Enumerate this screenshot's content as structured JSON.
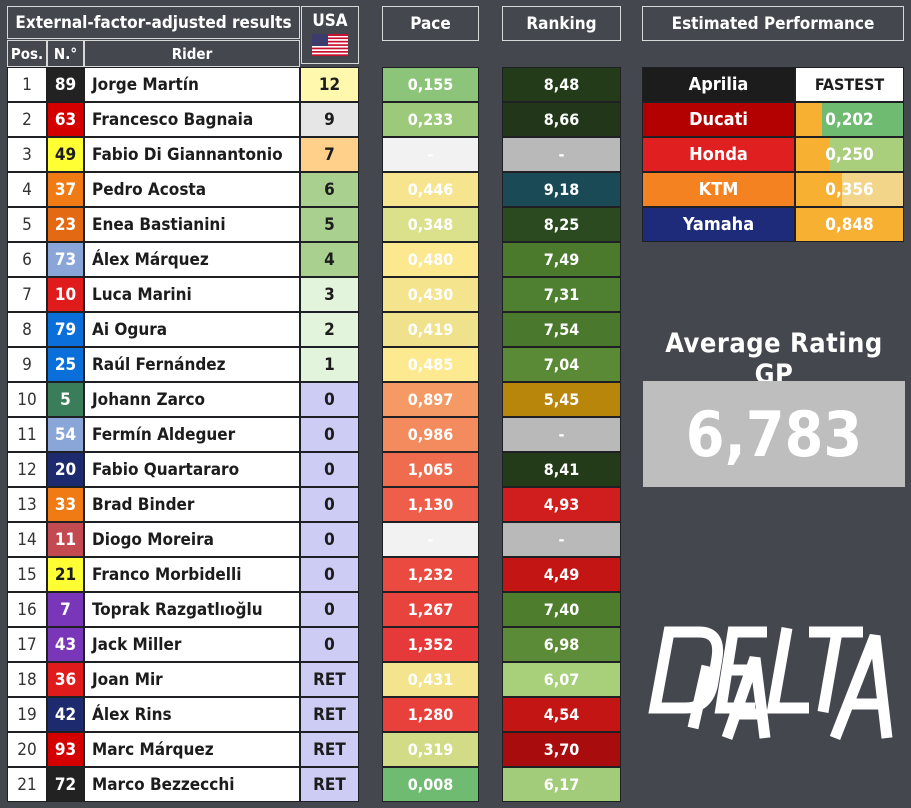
{
  "headers": {
    "results_title": "External-factor-adjusted results",
    "race": "USA",
    "pace": "Pace",
    "ranking": "Ranking",
    "performance": "Estimated Performance",
    "pos": "Pos.",
    "number": "N.°",
    "rider": "Rider"
  },
  "rows": [
    {
      "pos": "1",
      "num": "89",
      "rider": "Jorge Martín",
      "pts": "12",
      "pace": "0,155",
      "rank": "8,48",
      "num_color": "#222222",
      "num_text": "#ffffff",
      "pts_color": "#fff8ad",
      "pace_color": "#8cc47a",
      "rank_color": "#243b1a"
    },
    {
      "pos": "2",
      "num": "63",
      "rider": "Francesco Bagnaia",
      "pts": "9",
      "pace": "0,233",
      "rank": "8,66",
      "num_color": "#d40000",
      "num_text": "#ffffff",
      "pts_color": "#e6e6e6",
      "pace_color": "#9cc97a",
      "rank_color": "#223719"
    },
    {
      "pos": "3",
      "num": "49",
      "rider": "Fabio Di Giannantonio",
      "pts": "7",
      "pace": "-",
      "rank": "-",
      "num_color": "#ffff33",
      "num_text": "#1c1c1c",
      "pts_color": "#ffd08a",
      "pace_color": "#f2f2f2",
      "rank_color": "#b9b9b9"
    },
    {
      "pos": "4",
      "num": "37",
      "rider": "Pedro Acosta",
      "pts": "6",
      "pace": "0,446",
      "rank": "9,18",
      "num_color": "#f07a14",
      "num_text": "#ffffff",
      "pts_color": "#a9d08e",
      "pace_color": "#f6e48e",
      "rank_color": "#1a4a55"
    },
    {
      "pos": "5",
      "num": "23",
      "rider": "Enea Bastianini",
      "pts": "5",
      "pace": "0,348",
      "rank": "8,25",
      "num_color": "#e36a12",
      "num_text": "#ffffff",
      "pts_color": "#a9d08e",
      "pace_color": "#dbe08a",
      "rank_color": "#2b4a1f"
    },
    {
      "pos": "6",
      "num": "73",
      "rider": "Álex Márquez",
      "pts": "4",
      "pace": "0,480",
      "rank": "7,49",
      "num_color": "#8aa6d8",
      "num_text": "#ffffff",
      "pts_color": "#a9d08e",
      "pace_color": "#fce88f",
      "rank_color": "#4c7a2d"
    },
    {
      "pos": "7",
      "num": "10",
      "rider": "Luca Marini",
      "pts": "3",
      "pace": "0,430",
      "rank": "7,31",
      "num_color": "#e01b1b",
      "num_text": "#ffffff",
      "pts_color": "#e2f5dc",
      "pace_color": "#f4e48d",
      "rank_color": "#4f7f30"
    },
    {
      "pos": "8",
      "num": "79",
      "rider": "Ai Ogura",
      "pts": "2",
      "pace": "0,419",
      "rank": "7,54",
      "num_color": "#0a6fd8",
      "num_text": "#ffffff",
      "pts_color": "#e2f5dc",
      "pace_color": "#f0e28d",
      "rank_color": "#4a782c"
    },
    {
      "pos": "9",
      "num": "25",
      "rider": "Raúl Fernández",
      "pts": "1",
      "pace": "0,485",
      "rank": "7,04",
      "num_color": "#0a6fd8",
      "num_text": "#ffffff",
      "pts_color": "#e2f5dc",
      "pace_color": "#fde98f",
      "rank_color": "#5a8a35"
    },
    {
      "pos": "10",
      "num": "5",
      "rider": "Johann Zarco",
      "pts": "0",
      "pace": "0,897",
      "rank": "5,45",
      "num_color": "#3a7d5a",
      "num_text": "#ffffff",
      "pts_color": "#ccccf5",
      "pace_color": "#f59a64",
      "rank_color": "#b8860b"
    },
    {
      "pos": "11",
      "num": "54",
      "rider": "Fermín Aldeguer",
      "pts": "0",
      "pace": "0,986",
      "rank": "-",
      "num_color": "#8aa6d8",
      "num_text": "#ffffff",
      "pts_color": "#ccccf5",
      "pace_color": "#f48b5e",
      "rank_color": "#b9b9b9"
    },
    {
      "pos": "12",
      "num": "20",
      "rider": "Fabio Quartararo",
      "pts": "0",
      "pace": "1,065",
      "rank": "8,41",
      "num_color": "#1d2a6e",
      "num_text": "#ffffff",
      "pts_color": "#ccccf5",
      "pace_color": "#f06c4f",
      "rank_color": "#243b1a"
    },
    {
      "pos": "13",
      "num": "33",
      "rider": "Brad Binder",
      "pts": "0",
      "pace": "1,130",
      "rank": "4,93",
      "num_color": "#f07a14",
      "num_text": "#ffffff",
      "pts_color": "#ccccf5",
      "pace_color": "#ef5e4a",
      "rank_color": "#d01e1e"
    },
    {
      "pos": "14",
      "num": "11",
      "rider": "Diogo Moreira",
      "pts": "0",
      "pace": "-",
      "rank": "-",
      "num_color": "#c44a52",
      "num_text": "#ffffff",
      "pts_color": "#ccccf5",
      "pace_color": "#f2f2f2",
      "rank_color": "#b9b9b9"
    },
    {
      "pos": "15",
      "num": "21",
      "rider": "Franco Morbidelli",
      "pts": "0",
      "pace": "1,232",
      "rank": "4,49",
      "num_color": "#ffff33",
      "num_text": "#1c1c1c",
      "pts_color": "#ccccf5",
      "pace_color": "#ea4a40",
      "rank_color": "#c41515"
    },
    {
      "pos": "16",
      "num": "7",
      "rider": "Toprak Razgatlıoğlu",
      "pts": "0",
      "pace": "1,267",
      "rank": "7,40",
      "num_color": "#7a36b8",
      "num_text": "#ffffff",
      "pts_color": "#ccccf5",
      "pace_color": "#e8433d",
      "rank_color": "#4e7d2e"
    },
    {
      "pos": "17",
      "num": "43",
      "rider": "Jack Miller",
      "pts": "0",
      "pace": "1,352",
      "rank": "6,98",
      "num_color": "#7a36b8",
      "num_text": "#ffffff",
      "pts_color": "#ccccf5",
      "pace_color": "#e6393a",
      "rank_color": "#5b8b36"
    },
    {
      "pos": "18",
      "num": "36",
      "rider": "Joan Mir",
      "pts": "RET",
      "pace": "0,431",
      "rank": "6,07",
      "num_color": "#e01b1b",
      "num_text": "#ffffff",
      "pts_color": "#ccccf5",
      "pace_color": "#f4e48d",
      "rank_color": "#a8cf7a"
    },
    {
      "pos": "19",
      "num": "42",
      "rider": "Álex Rins",
      "pts": "RET",
      "pace": "1,280",
      "rank": "4,54",
      "num_color": "#1d2a6e",
      "num_text": "#ffffff",
      "pts_color": "#ccccf5",
      "pace_color": "#e8413c",
      "rank_color": "#c41515"
    },
    {
      "pos": "20",
      "num": "93",
      "rider": "Marc Márquez",
      "pts": "RET",
      "pace": "0,319",
      "rank": "3,70",
      "num_color": "#d40000",
      "num_text": "#ffffff",
      "pts_color": "#ccccf5",
      "pace_color": "#d2dc86",
      "rank_color": "#a80c0c"
    },
    {
      "pos": "21",
      "num": "72",
      "rider": "Marco Bezzecchi",
      "pts": "RET",
      "pace": "0,008",
      "rank": "6,17",
      "num_color": "#222222",
      "num_text": "#ffffff",
      "pts_color": "#ccccf5",
      "pace_color": "#6fbb72",
      "rank_color": "#a3cc7a"
    }
  ],
  "performance": [
    {
      "name": "Aprilia",
      "value": "FASTEST",
      "color": "#1c1c1c",
      "fill": 1.0
    },
    {
      "name": "Ducati",
      "value": "0,202",
      "color": "#b30000",
      "fill": 0.24
    },
    {
      "name": "Honda",
      "value": "0,250",
      "color": "#e02020",
      "fill": 0.3
    },
    {
      "name": "KTM",
      "value": "0,356",
      "color": "#f58220",
      "fill": 0.42
    },
    {
      "name": "Yamaha",
      "value": "0,848",
      "color": "#1e2a7a",
      "fill": 1.0
    }
  ],
  "average": {
    "title": "Average Rating GP",
    "value": "6,783"
  },
  "logo": {
    "text": "DELTA DATA",
    "icon": "delta-data-logo"
  }
}
